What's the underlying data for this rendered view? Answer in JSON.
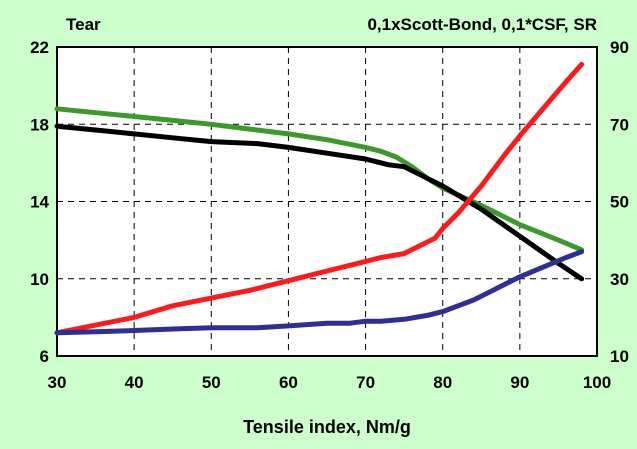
{
  "chart_data": {
    "type": "line",
    "left_title": "Tear",
    "right_title": "0,1xScott-Bond, 0,1*CSF, SR",
    "xlabel": "Tensile index, Nm/g",
    "xlim": [
      30,
      100
    ],
    "x_ticks": [
      "30",
      "40",
      "50",
      "60",
      "70",
      "80",
      "90",
      "100"
    ],
    "ylim_left": [
      6,
      22
    ],
    "y_left_ticks": [
      "6",
      "10",
      "14",
      "18",
      "22"
    ],
    "ylim_right": [
      10,
      90
    ],
    "y_right_ticks": [
      "10",
      "30",
      "50",
      "70",
      "90"
    ],
    "grid": true,
    "series": [
      {
        "color": "#3a9a2a",
        "axis": "left",
        "points": [
          [
            30,
            18.8
          ],
          [
            35,
            18.6
          ],
          [
            40,
            18.4
          ],
          [
            45,
            18.2
          ],
          [
            50,
            18.0
          ],
          [
            55,
            17.75
          ],
          [
            60,
            17.5
          ],
          [
            65,
            17.2
          ],
          [
            70,
            16.8
          ],
          [
            72,
            16.6
          ],
          [
            74,
            16.3
          ],
          [
            76,
            15.8
          ],
          [
            78,
            15.2
          ],
          [
            80,
            14.7
          ],
          [
            85,
            13.8
          ],
          [
            90,
            12.8
          ],
          [
            95,
            12.0
          ],
          [
            98,
            11.5
          ]
        ]
      },
      {
        "color": "#000000",
        "axis": "left",
        "points": [
          [
            30,
            17.9
          ],
          [
            35,
            17.7
          ],
          [
            40,
            17.5
          ],
          [
            45,
            17.3
          ],
          [
            50,
            17.1
          ],
          [
            56,
            17.0
          ],
          [
            60,
            16.8
          ],
          [
            65,
            16.5
          ],
          [
            70,
            16.2
          ],
          [
            73,
            15.9
          ],
          [
            75,
            15.8
          ],
          [
            78,
            15.2
          ],
          [
            80,
            14.8
          ],
          [
            85,
            13.6
          ],
          [
            90,
            12.2
          ],
          [
            95,
            10.8
          ],
          [
            98,
            10.0
          ]
        ]
      },
      {
        "color": "#ff1a1a",
        "axis": "right",
        "points": [
          [
            30,
            16.0
          ],
          [
            35,
            18.0
          ],
          [
            40,
            20.0
          ],
          [
            45,
            23.0
          ],
          [
            50,
            25.0
          ],
          [
            55,
            27.0
          ],
          [
            60,
            29.5
          ],
          [
            65,
            32.0
          ],
          [
            70,
            34.5
          ],
          [
            72,
            35.5
          ],
          [
            75,
            36.5
          ],
          [
            77,
            38.5
          ],
          [
            79,
            40.5
          ],
          [
            80,
            43.0
          ],
          [
            82,
            47.0
          ],
          [
            85,
            54.0
          ],
          [
            88,
            62.0
          ],
          [
            90,
            67.0
          ],
          [
            93,
            74.0
          ],
          [
            96,
            81.0
          ],
          [
            98,
            85.5
          ]
        ]
      },
      {
        "color": "#2e2e99",
        "axis": "right",
        "points": [
          [
            30,
            16.0
          ],
          [
            35,
            16.3
          ],
          [
            40,
            16.6
          ],
          [
            45,
            17.0
          ],
          [
            50,
            17.3
          ],
          [
            56,
            17.3
          ],
          [
            60,
            17.8
          ],
          [
            65,
            18.5
          ],
          [
            68,
            18.5
          ],
          [
            70,
            19.0
          ],
          [
            72,
            19.0
          ],
          [
            75,
            19.5
          ],
          [
            78,
            20.5
          ],
          [
            80,
            21.5
          ],
          [
            82,
            23.0
          ],
          [
            84,
            24.5
          ],
          [
            86,
            26.5
          ],
          [
            88,
            28.5
          ],
          [
            90,
            30.5
          ],
          [
            93,
            33.0
          ],
          [
            96,
            35.5
          ],
          [
            98,
            37.0
          ]
        ]
      }
    ]
  }
}
